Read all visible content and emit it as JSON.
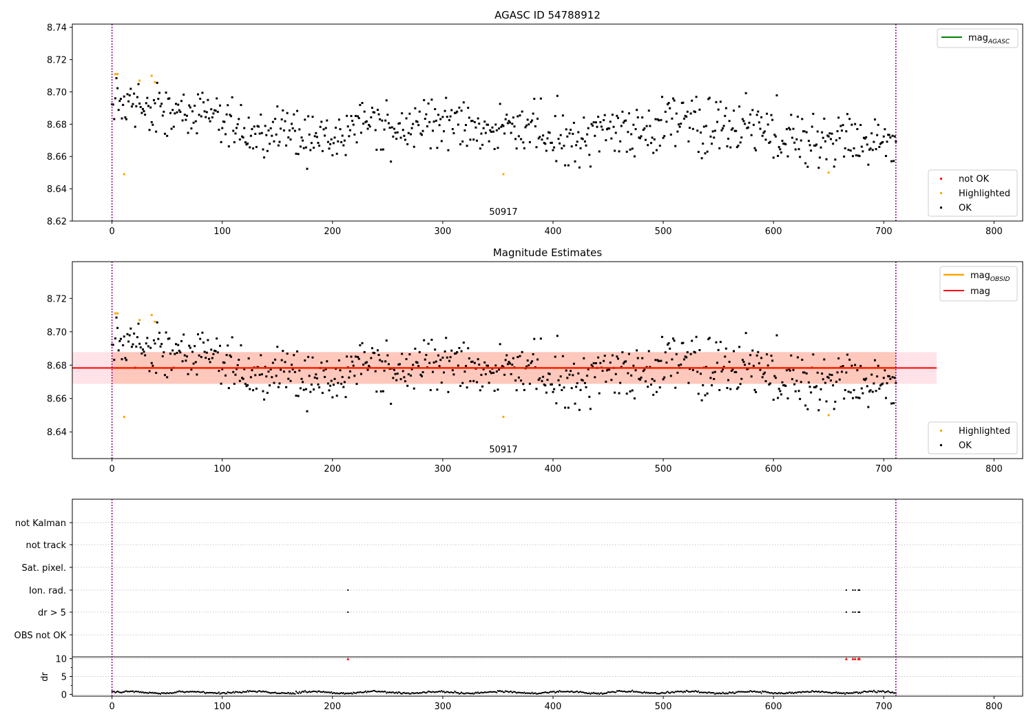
{
  "colors": {
    "ok": "#000000",
    "highlighted": "#ffa500",
    "not_ok": "#ff0000",
    "mag_agasc_line": "#008000",
    "mag_obsid_line": "#ffa500",
    "mag_line": "#ff0000",
    "band_outer": "#ffc0cb",
    "band_inner": "#ffa07a",
    "obs_boundary": "#800080",
    "flag_grid": "#b0b0b0"
  },
  "chart_data": [
    {
      "id": "agasc",
      "type": "scatter",
      "title": "AGASC ID 54788912",
      "xlim": [
        -36,
        826
      ],
      "ylim": [
        8.62,
        8.742
      ],
      "xticks": [
        "0",
        "100",
        "200",
        "300",
        "400",
        "500",
        "600",
        "700",
        "800"
      ],
      "yticks": [
        "8.62",
        "8.64",
        "8.66",
        "8.68",
        "8.70",
        "8.72",
        "8.74"
      ],
      "obs_boundaries": [
        0,
        711
      ],
      "obs_label": "50917",
      "obs_label_x": 355,
      "legend_lines": [
        {
          "name": "mag_AGASC",
          "color": "mag_agasc_line",
          "placement": "top-right"
        }
      ],
      "legend_points": [
        {
          "name": "not OK",
          "color": "not_ok"
        },
        {
          "name": "Highlighted",
          "color": "highlighted"
        },
        {
          "name": "OK",
          "color": "ok"
        }
      ],
      "highlighted_points": [
        [
          3,
          8.711
        ],
        [
          5,
          8.711
        ],
        [
          11,
          8.649
        ],
        [
          25,
          8.707
        ],
        [
          36,
          8.71
        ],
        [
          39,
          8.706
        ],
        [
          355,
          8.649
        ],
        [
          650,
          8.65
        ]
      ]
    },
    {
      "id": "estimates",
      "type": "scatter",
      "title": "Magnitude Estimates",
      "xlim": [
        -36,
        826
      ],
      "ylim": [
        8.624,
        8.742
      ],
      "xticks": [
        "0",
        "100",
        "200",
        "300",
        "400",
        "500",
        "600",
        "700",
        "800"
      ],
      "yticks": [
        "8.64",
        "8.66",
        "8.68",
        "8.70",
        "8.72"
      ],
      "obs_boundaries": [
        0,
        711
      ],
      "obs_label": "50917",
      "obs_label_x": 355,
      "mag": 8.6783,
      "mag_std": 0.0095,
      "obs_band_xrange": [
        0,
        711
      ],
      "outer_band_xrange": [
        -36,
        748
      ],
      "legend_lines": [
        {
          "name": "mag_OBSID",
          "color": "mag_obsid_line"
        },
        {
          "name": "mag",
          "color": "mag_line"
        }
      ],
      "legend_points": [
        {
          "name": "Highlighted",
          "color": "highlighted"
        },
        {
          "name": "OK",
          "color": "ok"
        }
      ],
      "highlighted_points": [
        [
          3,
          8.711
        ],
        [
          5,
          8.711
        ],
        [
          11,
          8.649
        ],
        [
          25,
          8.707
        ],
        [
          36,
          8.71
        ],
        [
          39,
          8.706
        ],
        [
          355,
          8.649
        ],
        [
          650,
          8.65
        ]
      ]
    },
    {
      "id": "flags",
      "type": "scatter",
      "categories": [
        "not Kalman",
        "not track",
        "Sat. pixel.",
        "Ion. rad.",
        "dr > 5",
        "OBS not OK"
      ],
      "obs_boundaries": [
        0,
        711
      ],
      "flagged_x": {
        "Ion. rad.": [
          214,
          666,
          672,
          674,
          677,
          678
        ],
        "dr > 5": [
          214,
          666,
          672,
          674,
          677,
          678
        ]
      }
    },
    {
      "id": "dr",
      "type": "scatter",
      "ylabel": "dr",
      "xlim": [
        -36,
        826
      ],
      "ylim": [
        -0.5,
        10.5
      ],
      "xticks": [
        "0",
        "100",
        "200",
        "300",
        "400",
        "500",
        "600",
        "700",
        "800"
      ],
      "yticks": [
        "0",
        "5",
        "10"
      ],
      "obs_boundaries": [
        0,
        711
      ],
      "capped_points_x": [
        214,
        666,
        672,
        674,
        677,
        678
      ]
    }
  ]
}
